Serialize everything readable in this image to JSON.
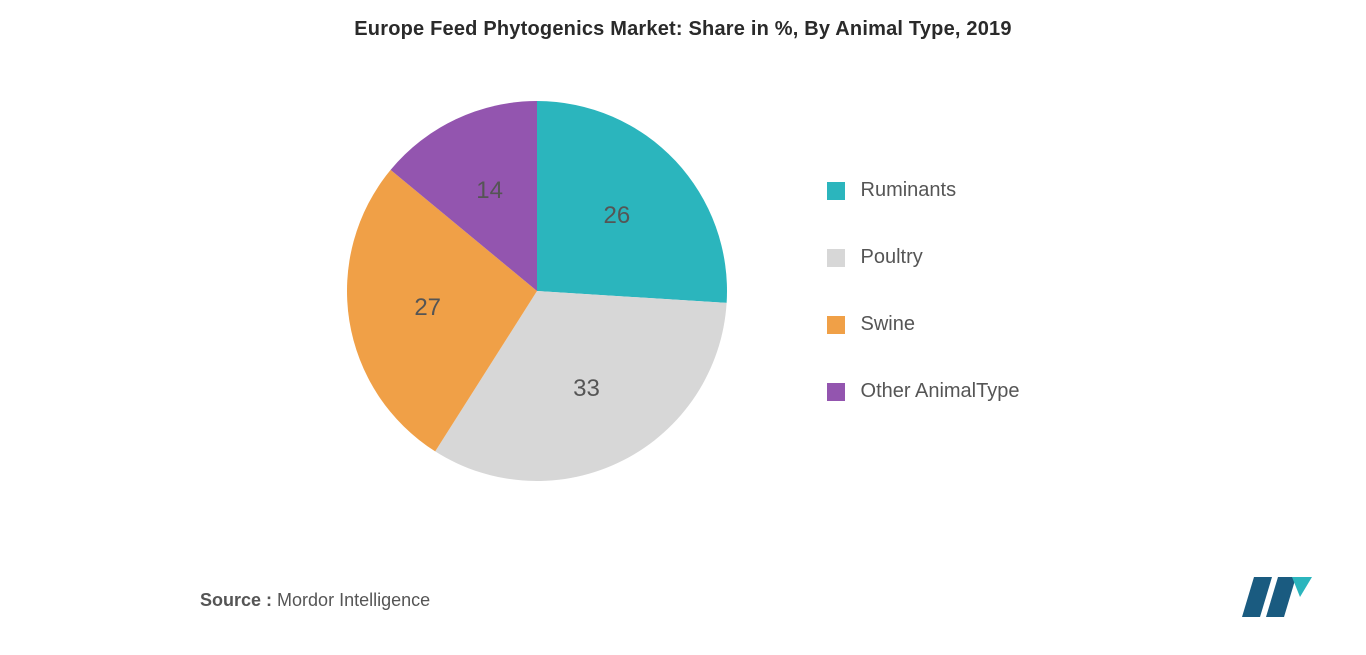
{
  "chart": {
    "type": "pie",
    "title": "Europe Feed Phytogenics Market: Share in %, By Animal Type, 2019",
    "title_fontsize": 20,
    "title_color": "#2a2a2a",
    "background_color": "#ffffff",
    "label_color": "#555555",
    "label_fontsize": 24,
    "legend_fontsize": 20,
    "legend_color": "#555555",
    "legend_swatch_size": 18,
    "pie_radius": 190,
    "start_angle_deg": 0,
    "clockwise": true,
    "slices": [
      {
        "label": "Ruminants",
        "value": 26,
        "color": "#2bb5bd"
      },
      {
        "label": "Poultry",
        "value": 33,
        "color": "#d7d7d7"
      },
      {
        "label": "Swine",
        "value": 27,
        "color": "#f0a047"
      },
      {
        "label": "Other AnimalType",
        "value": 14,
        "color": "#9355af"
      }
    ]
  },
  "source": {
    "label": "Source :",
    "value": "Mordor Intelligence"
  },
  "logo": {
    "bar_color": "#1a5b80",
    "accent_color": "#2bb5bd"
  }
}
